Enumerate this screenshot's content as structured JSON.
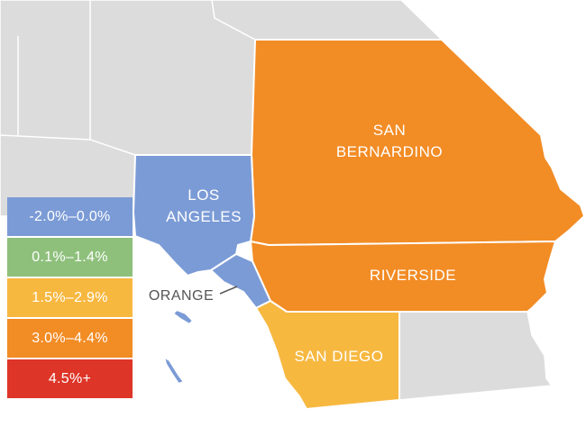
{
  "map": {
    "colors": {
      "background_land": "#dcdcdc",
      "neg_2_to_0": "#7b9bd6",
      "p01_to_14": "#8ec07c",
      "p15_to_29": "#f7b840",
      "p30_to_44": "#f28c25",
      "p45_plus": "#dd3527"
    },
    "counties": [
      {
        "id": "san-bernardino",
        "label_line1": "SAN",
        "label_line2": "BERNARDINO",
        "range": "3.0%–4.4%"
      },
      {
        "id": "los-angeles",
        "label_line1": "LOS",
        "label_line2": "ANGELES",
        "range": "-2.0%–0.0%"
      },
      {
        "id": "riverside",
        "label": "RIVERSIDE",
        "range": "3.0%–4.4%"
      },
      {
        "id": "orange",
        "label": "ORANGE",
        "range": "-2.0%–0.0%"
      },
      {
        "id": "san-diego",
        "label": "SAN DIEGO",
        "range": "1.5%–2.9%"
      }
    ]
  },
  "legend": [
    {
      "label": "-2.0%–0.0%",
      "color": "#7b9bd6"
    },
    {
      "label": "0.1%–1.4%",
      "color": "#8ec07c"
    },
    {
      "label": "1.5%–2.9%",
      "color": "#f7b840"
    },
    {
      "label": "3.0%–4.4%",
      "color": "#f28c25"
    },
    {
      "label": "4.5%+",
      "color": "#dd3527"
    }
  ]
}
